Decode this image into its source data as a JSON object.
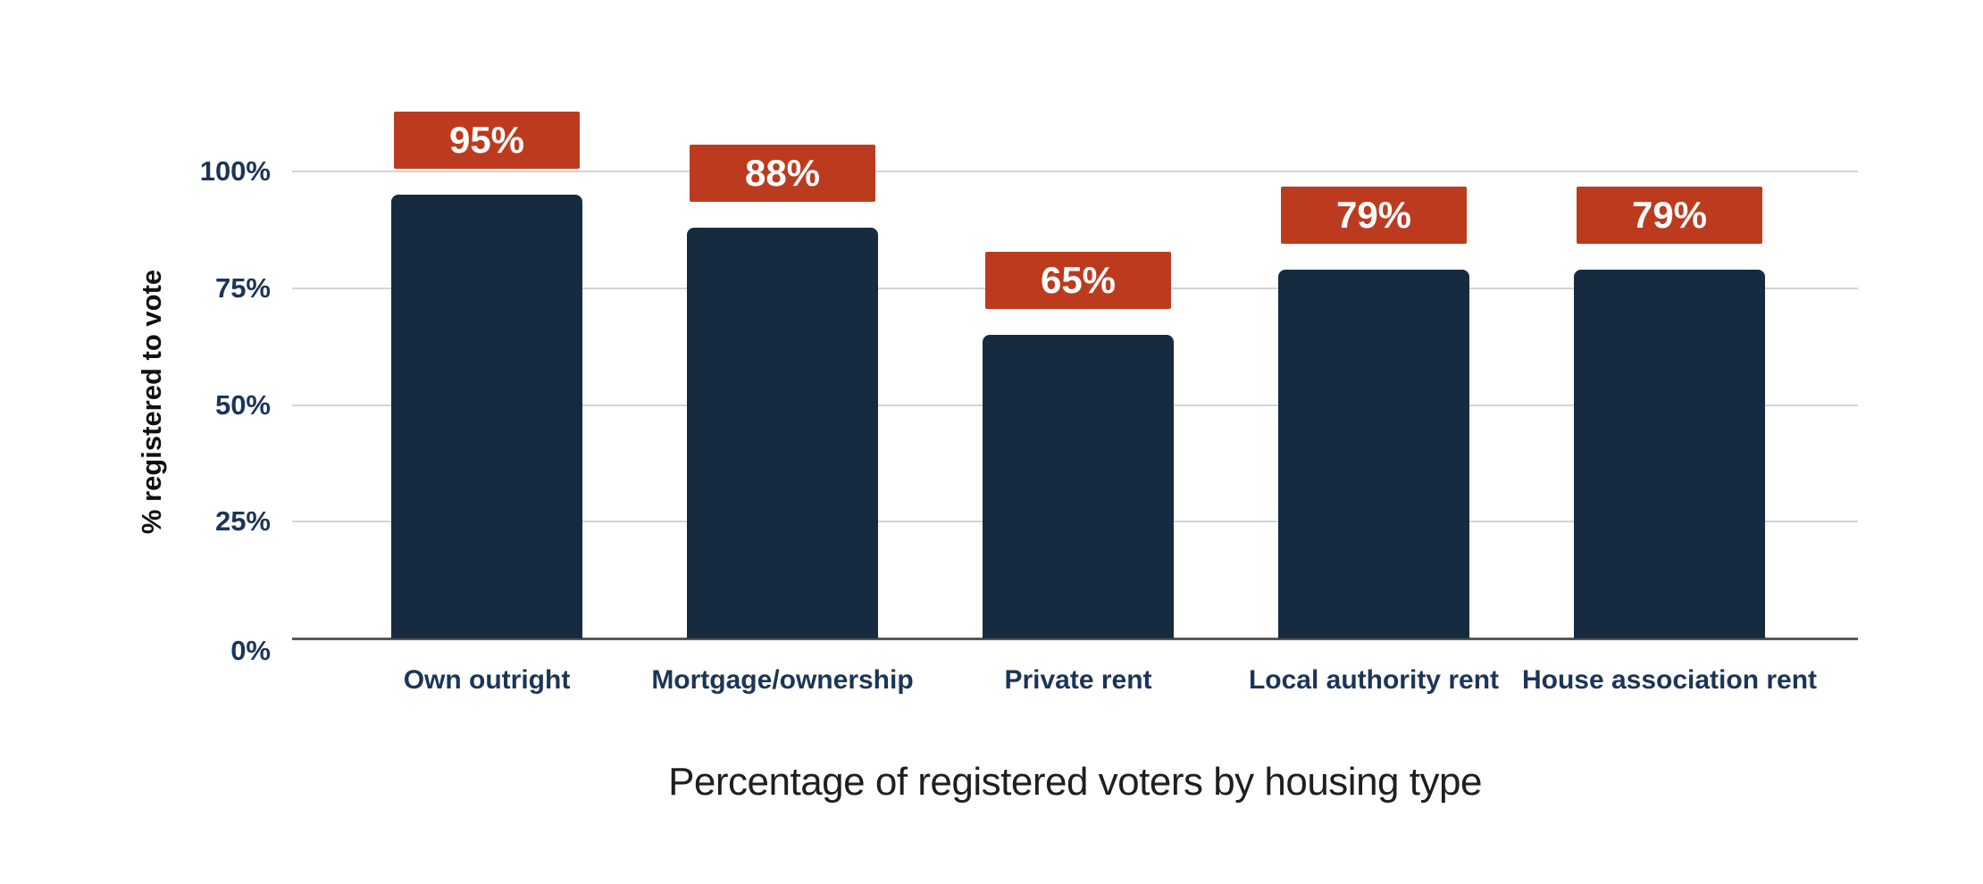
{
  "chart_data": {
    "type": "bar",
    "title": "Percentage of registered voters by housing type",
    "ylabel": "% registered to vote",
    "categories": [
      "Own outright",
      "Mortgage/ownership",
      "Private rent",
      "Local authority rent",
      "House association rent"
    ],
    "values": [
      95,
      88,
      65,
      79,
      79
    ],
    "bar_labels": [
      "95%",
      "88%",
      "65%",
      "79%",
      "79%"
    ],
    "yticks": [
      {
        "value": 0,
        "label": "0%"
      },
      {
        "value": 25,
        "label": "25%"
      },
      {
        "value": 50,
        "label": "50%"
      },
      {
        "value": 75,
        "label": "75%"
      },
      {
        "value": 100,
        "label": "100%"
      }
    ],
    "ylim": [
      0,
      100
    ],
    "grid": "horizontal",
    "legend": false,
    "colors": {
      "bar": "#172b40",
      "data_label_bg": "#bc3b1f",
      "data_label_text": "#ffffff",
      "axis_text": "#1c3557",
      "gridline": "#d4d4d4",
      "axis_line": "#595959",
      "title_text": "#1f1f1f",
      "y_axis_title_text": "#111111"
    }
  }
}
